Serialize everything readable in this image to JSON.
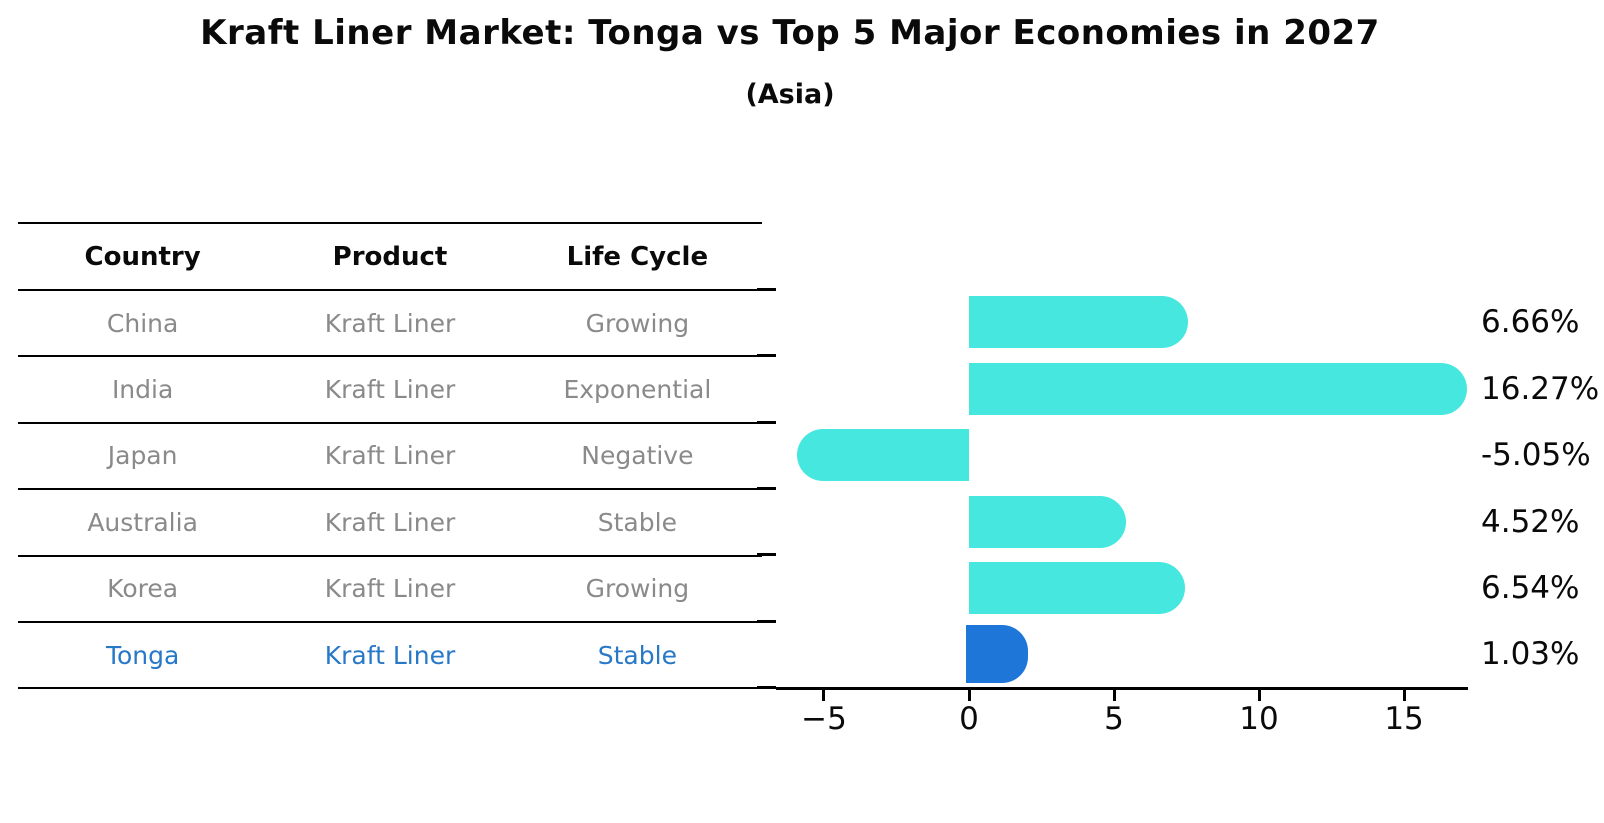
{
  "title": "Kraft Liner Market: Tonga vs Top 5 Major Economies in 2027",
  "subtitle": "(Asia)",
  "colors": {
    "bar": "#46e7df",
    "highlight_bar": "#1e76d9",
    "row_text": "#8a8a8a",
    "highlight_text": "#2878c8",
    "heading_text": "#0a0a0a",
    "axis": "#000000"
  },
  "table": {
    "headers": [
      "Country",
      "Product",
      "Life Cycle"
    ],
    "rows": [
      {
        "country": "China",
        "product": "Kraft Liner",
        "life_cycle": "Growing",
        "highlight": false
      },
      {
        "country": "India",
        "product": "Kraft Liner",
        "life_cycle": "Exponential",
        "highlight": false
      },
      {
        "country": "Japan",
        "product": "Kraft Liner",
        "life_cycle": "Negative",
        "highlight": false
      },
      {
        "country": "Australia",
        "product": "Kraft Liner",
        "life_cycle": "Stable",
        "highlight": false
      },
      {
        "country": "Korea",
        "product": "Kraft Liner",
        "life_cycle": "Growing",
        "highlight": false
      },
      {
        "country": "Tonga",
        "product": "Kraft Liner",
        "life_cycle": "Stable",
        "highlight": true
      }
    ]
  },
  "chart_data": {
    "type": "bar",
    "orientation": "horizontal",
    "title": "Kraft Liner Market: Tonga vs Top 5 Major Economies in 2027",
    "subtitle": "(Asia)",
    "categories": [
      "China",
      "India",
      "Japan",
      "Australia",
      "Korea",
      "Tonga"
    ],
    "values": [
      6.66,
      16.27,
      -5.05,
      4.52,
      6.54,
      1.03
    ],
    "value_labels": [
      "6.66%",
      "16.27%",
      "-5.05%",
      "4.52%",
      "6.54%",
      "1.03%"
    ],
    "highlight_category": "Tonga",
    "x_ticks": [
      -5,
      0,
      5,
      10,
      15
    ],
    "x_tick_labels": [
      "−5",
      "0",
      "5",
      "10",
      "15"
    ],
    "xlim": [
      -6.62,
      17.17
    ],
    "grid": false,
    "legend": false,
    "bar_color": "#46e7df",
    "highlight_bar_color": "#1e76d9",
    "highlight_bar_style": "dotted-border",
    "rounded_bar_caps": true
  }
}
